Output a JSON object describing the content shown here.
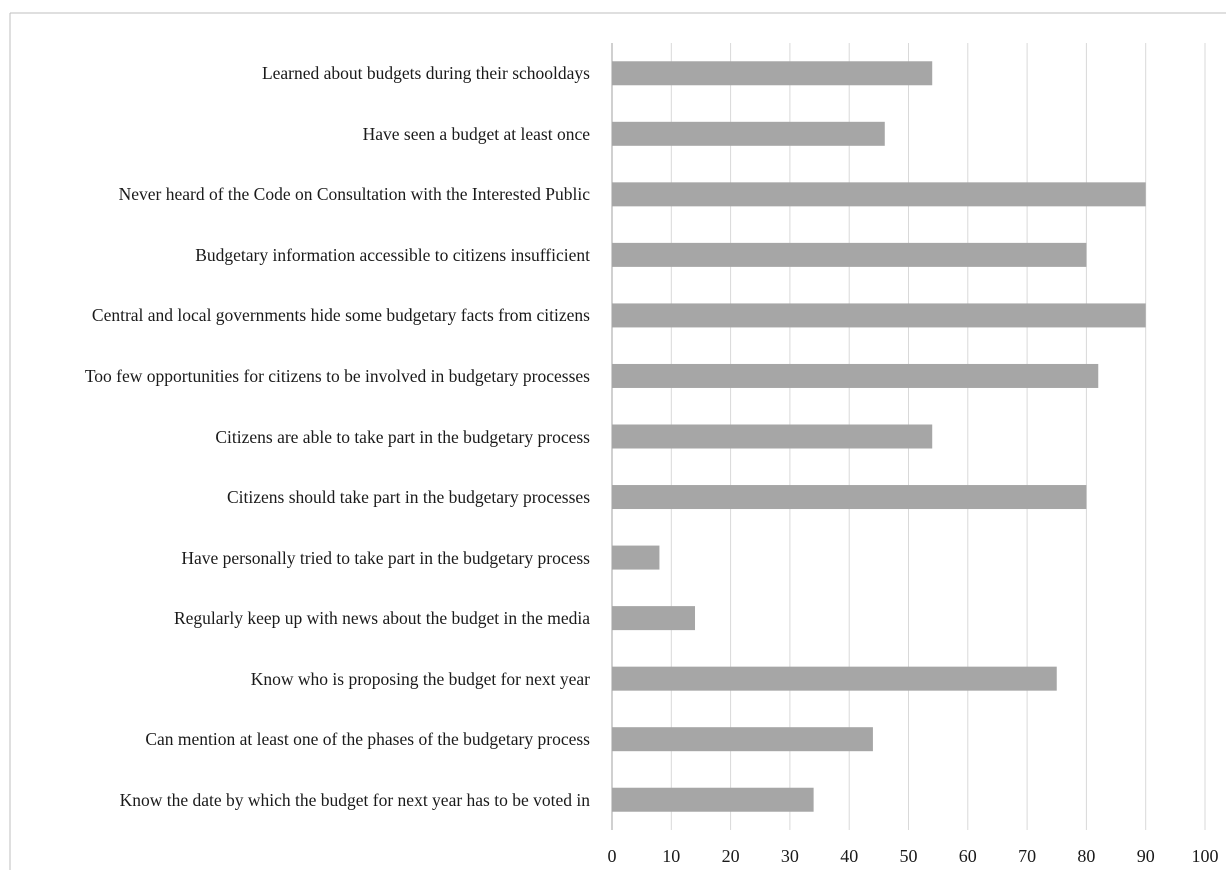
{
  "chart_data": {
    "type": "bar",
    "orientation": "horizontal",
    "categories": [
      "Learned about budgets during their schooldays",
      "Have seen a budget at least once",
      "Never heard of the Code on Consultation with the Interested Public",
      "Budgetary information accessible to citizens insufficient",
      "Central and local governments hide some budgetary facts from citizens",
      "Too few opportunities for citizens to be involved in budgetary processes",
      "Citizens are able to take part in the budgetary process",
      "Citizens should take part in the budgetary processes",
      "Have personally tried to take part in the budgetary process",
      "Regularly keep up with news about the budget in the media",
      "Know who is proposing the budget for next year",
      "Can mention at least one of the phases of the budgetary process",
      "Know the date by which the budget for next year has to be voted in"
    ],
    "values": [
      54,
      46,
      90,
      80,
      90,
      82,
      54,
      80,
      8,
      14,
      75,
      44,
      34
    ],
    "color": "#a6a6a6",
    "xlim": [
      0,
      100
    ],
    "xticks": [
      0,
      10,
      20,
      30,
      40,
      50,
      60,
      70,
      80,
      90,
      100
    ],
    "grid": true
  }
}
